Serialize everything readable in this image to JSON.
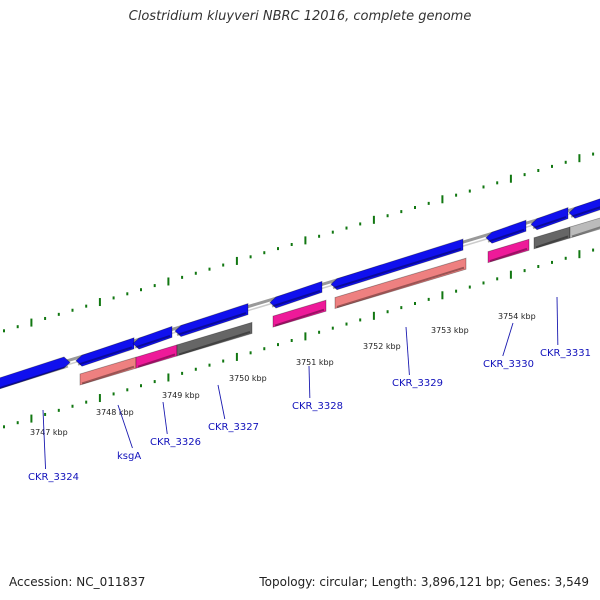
{
  "title": "Clostridium kluyveri NBRC 12016, complete genome",
  "footer": {
    "accession": "Accession: NC_011837",
    "summary": "Topology: circular; Length: 3,896,121 bp; Genes: 3,549"
  },
  "colors": {
    "backbone": "#999999",
    "tick": "#117711",
    "gene_forward": "#1010ee",
    "gene_pink": "#ee1a99",
    "gene_salmon": "#ee8080",
    "gene_dark_gray": "#666666",
    "gene_light_gray": "#bbbbbb",
    "label_text": "#1111bb",
    "position_label": "#222222"
  },
  "position_labels": [
    "3747 kbp",
    "3748 kbp",
    "3749 kbp",
    "3750 kbp",
    "3751 kbp",
    "3752 kbp",
    "3753 kbp",
    "3754 kbp"
  ],
  "genes": [
    {
      "name": "CKR_3324"
    },
    {
      "name": "ksgA"
    },
    {
      "name": "CKR_3326"
    },
    {
      "name": "CKR_3327"
    },
    {
      "name": "CKR_3328"
    },
    {
      "name": "CKR_3329"
    },
    {
      "name": "CKR_3330"
    },
    {
      "name": "CKR_3331"
    }
  ]
}
